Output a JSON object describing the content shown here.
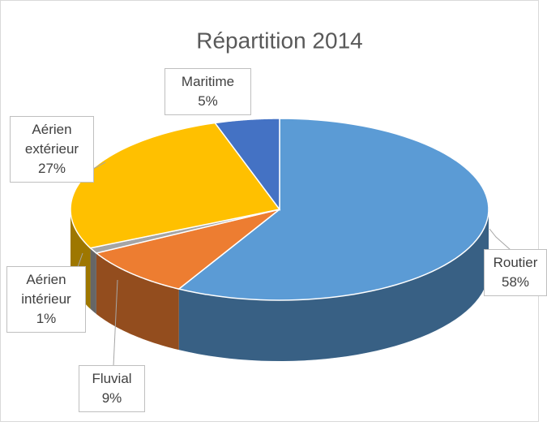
{
  "chart_data": {
    "type": "pie3d",
    "title": "Répartition 2014",
    "categories": [
      "Routier",
      "Fluvial",
      "Aérien intérieur",
      "Aérien extérieur",
      "Maritime"
    ],
    "values": [
      58,
      9,
      1,
      27,
      5
    ],
    "value_labels": [
      "58%",
      "9%",
      "1%",
      "27%",
      "5%"
    ],
    "colors": [
      "#5b9bd5",
      "#ed7d31",
      "#a5a5a5",
      "#ffc000",
      "#4472c4"
    ]
  }
}
